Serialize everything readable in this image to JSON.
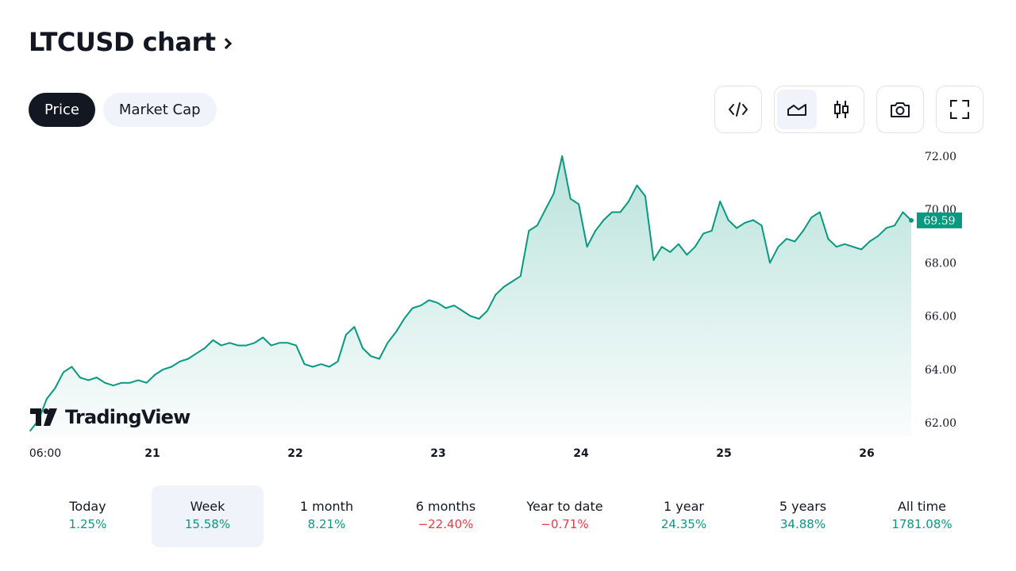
{
  "header": {
    "title": "LTCUSD chart"
  },
  "tabs": [
    {
      "label": "Price",
      "active": true
    },
    {
      "label": "Market Cap",
      "active": false
    }
  ],
  "toolbar": {
    "embed_icon": "code-icon",
    "area_icon": "area-chart-icon",
    "candles_icon": "candlestick-icon",
    "snapshot_icon": "camera-icon",
    "fullscreen_icon": "fullscreen-icon"
  },
  "logo": {
    "text": "TradingView"
  },
  "colors": {
    "line": "#089981",
    "fill": "#089981",
    "positive": "#089981",
    "negative": "#f23645",
    "tag": "#089981"
  },
  "chart_data": {
    "type": "area",
    "title": "",
    "ylim": [
      61.5,
      72.5
    ],
    "y_ticks": [
      "72.00",
      "70.00",
      "68.00",
      "66.00",
      "64.00",
      "62.00"
    ],
    "x_ticks": [
      "06:00",
      "21",
      "22",
      "23",
      "24",
      "25",
      "26"
    ],
    "last_price_label": "69.59",
    "series": [
      {
        "values": [
          61.7,
          62.1,
          62.9,
          63.3,
          63.9,
          64.1,
          63.7,
          63.6,
          63.7,
          63.5,
          63.4,
          63.5,
          63.5,
          63.6,
          63.5,
          63.8,
          64.0,
          64.1,
          64.3,
          64.4,
          64.6,
          64.8,
          65.1,
          64.9,
          65.0,
          64.9,
          64.9,
          65.0,
          65.2,
          64.9,
          65.0,
          65.0,
          64.9,
          64.2,
          64.1,
          64.2,
          64.1,
          64.3,
          65.3,
          65.6,
          64.8,
          64.5,
          64.4,
          65.0,
          65.4,
          65.9,
          66.3,
          66.4,
          66.6,
          66.5,
          66.3,
          66.4,
          66.2,
          66.0,
          65.9,
          66.2,
          66.8,
          67.1,
          67.3,
          67.5,
          69.2,
          69.4,
          70.0,
          70.6,
          72.0,
          70.4,
          70.2,
          68.6,
          69.2,
          69.6,
          69.9,
          69.9,
          70.3,
          70.9,
          70.5,
          68.1,
          68.6,
          68.4,
          68.7,
          68.3,
          68.6,
          69.1,
          69.2,
          70.3,
          69.6,
          69.3,
          69.5,
          69.6,
          69.4,
          68.0,
          68.6,
          68.9,
          68.8,
          69.2,
          69.7,
          69.9,
          68.9,
          68.6,
          68.7,
          68.6,
          68.5,
          68.8,
          69.0,
          69.3,
          69.4,
          69.9,
          69.59
        ]
      }
    ]
  },
  "stats": [
    {
      "label": "Today",
      "value": "1.25%",
      "trend": "pos",
      "active": false
    },
    {
      "label": "Week",
      "value": "15.58%",
      "trend": "pos",
      "active": true
    },
    {
      "label": "1 month",
      "value": "8.21%",
      "trend": "pos",
      "active": false
    },
    {
      "label": "6 months",
      "value": "−22.40%",
      "trend": "neg",
      "active": false
    },
    {
      "label": "Year to date",
      "value": "−0.71%",
      "trend": "neg",
      "active": false
    },
    {
      "label": "1 year",
      "value": "24.35%",
      "trend": "pos",
      "active": false
    },
    {
      "label": "5 years",
      "value": "34.88%",
      "trend": "pos",
      "active": false
    },
    {
      "label": "All time",
      "value": "1781.08%",
      "trend": "pos",
      "active": false
    }
  ]
}
